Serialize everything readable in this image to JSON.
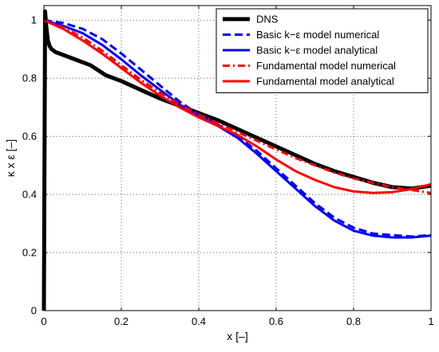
{
  "chart_data": {
    "type": "line",
    "title": "",
    "xlabel": "x [–]",
    "ylabel": "κ x ε [–]",
    "xlim": [
      0,
      1
    ],
    "ylim": [
      0,
      1.05
    ],
    "xticks": [
      0,
      0.2,
      0.4,
      0.6,
      0.8,
      1
    ],
    "xtick_labels": [
      "0",
      "0.2",
      "0.4",
      "0.6",
      "0.8",
      "1"
    ],
    "yticks": [
      0,
      0.2,
      0.4,
      0.6,
      0.8,
      1
    ],
    "ytick_labels": [
      "0",
      "0.2",
      "0.4",
      "0.6",
      "0.8",
      "1"
    ],
    "grid": true,
    "legend_position": "top-right",
    "series": [
      {
        "name": "DNS",
        "color": "#000000",
        "style": "solid",
        "x": [
          0,
          0.003,
          0.006,
          0.01,
          0.015,
          0.02,
          0.03,
          0.05,
          0.08,
          0.12,
          0.16,
          0.2,
          0.25,
          0.3,
          0.35,
          0.4,
          0.45,
          0.5,
          0.55,
          0.6,
          0.65,
          0.7,
          0.75,
          0.8,
          0.85,
          0.9,
          0.95,
          1.0
        ],
        "y": [
          0,
          1.03,
          0.98,
          0.93,
          0.91,
          0.9,
          0.89,
          0.88,
          0.865,
          0.845,
          0.81,
          0.79,
          0.76,
          0.73,
          0.705,
          0.68,
          0.655,
          0.625,
          0.595,
          0.565,
          0.535,
          0.505,
          0.48,
          0.46,
          0.44,
          0.425,
          0.42,
          0.43
        ]
      },
      {
        "name": "Basic k−ε model numerical",
        "color": "#0000ff",
        "style": "dashed",
        "x": [
          0,
          0.05,
          0.1,
          0.15,
          0.2,
          0.25,
          0.3,
          0.35,
          0.4,
          0.45,
          0.5,
          0.55,
          0.6,
          0.65,
          0.7,
          0.75,
          0.8,
          0.85,
          0.9,
          0.95,
          1.0
        ],
        "y": [
          1.0,
          0.99,
          0.97,
          0.935,
          0.885,
          0.83,
          0.775,
          0.72,
          0.675,
          0.64,
          0.6,
          0.55,
          0.49,
          0.43,
          0.37,
          0.32,
          0.285,
          0.265,
          0.26,
          0.255,
          0.26
        ]
      },
      {
        "name": "Basic k−ε model analytical",
        "color": "#0000ff",
        "style": "solid",
        "x": [
          0,
          0.05,
          0.1,
          0.15,
          0.2,
          0.25,
          0.3,
          0.35,
          0.4,
          0.45,
          0.5,
          0.55,
          0.6,
          0.65,
          0.7,
          0.75,
          0.8,
          0.85,
          0.9,
          0.95,
          1.0
        ],
        "y": [
          1.0,
          0.98,
          0.955,
          0.915,
          0.865,
          0.81,
          0.76,
          0.71,
          0.67,
          0.635,
          0.595,
          0.54,
          0.48,
          0.42,
          0.36,
          0.31,
          0.275,
          0.258,
          0.252,
          0.252,
          0.258
        ]
      },
      {
        "name": "Fundamental model numerical",
        "color": "#ff0000",
        "style": "dashdot",
        "x": [
          0,
          0.05,
          0.1,
          0.15,
          0.2,
          0.25,
          0.3,
          0.35,
          0.4,
          0.45,
          0.5,
          0.55,
          0.6,
          0.65,
          0.7,
          0.75,
          0.8,
          0.85,
          0.9,
          0.95,
          1.0
        ],
        "y": [
          1.0,
          0.975,
          0.94,
          0.895,
          0.845,
          0.795,
          0.75,
          0.71,
          0.675,
          0.645,
          0.615,
          0.585,
          0.555,
          0.525,
          0.5,
          0.475,
          0.455,
          0.44,
          0.425,
          0.415,
          0.405
        ]
      },
      {
        "name": "Fundamental model analytical",
        "color": "#ff0000",
        "style": "solid",
        "x": [
          0,
          0.05,
          0.1,
          0.15,
          0.2,
          0.25,
          0.3,
          0.35,
          0.4,
          0.45,
          0.5,
          0.55,
          0.6,
          0.65,
          0.7,
          0.75,
          0.8,
          0.85,
          0.9,
          0.95,
          1.0
        ],
        "y": [
          1.0,
          0.97,
          0.93,
          0.885,
          0.835,
          0.785,
          0.74,
          0.7,
          0.665,
          0.635,
          0.605,
          0.565,
          0.52,
          0.48,
          0.45,
          0.425,
          0.41,
          0.405,
          0.408,
          0.418,
          0.435
        ]
      }
    ]
  }
}
